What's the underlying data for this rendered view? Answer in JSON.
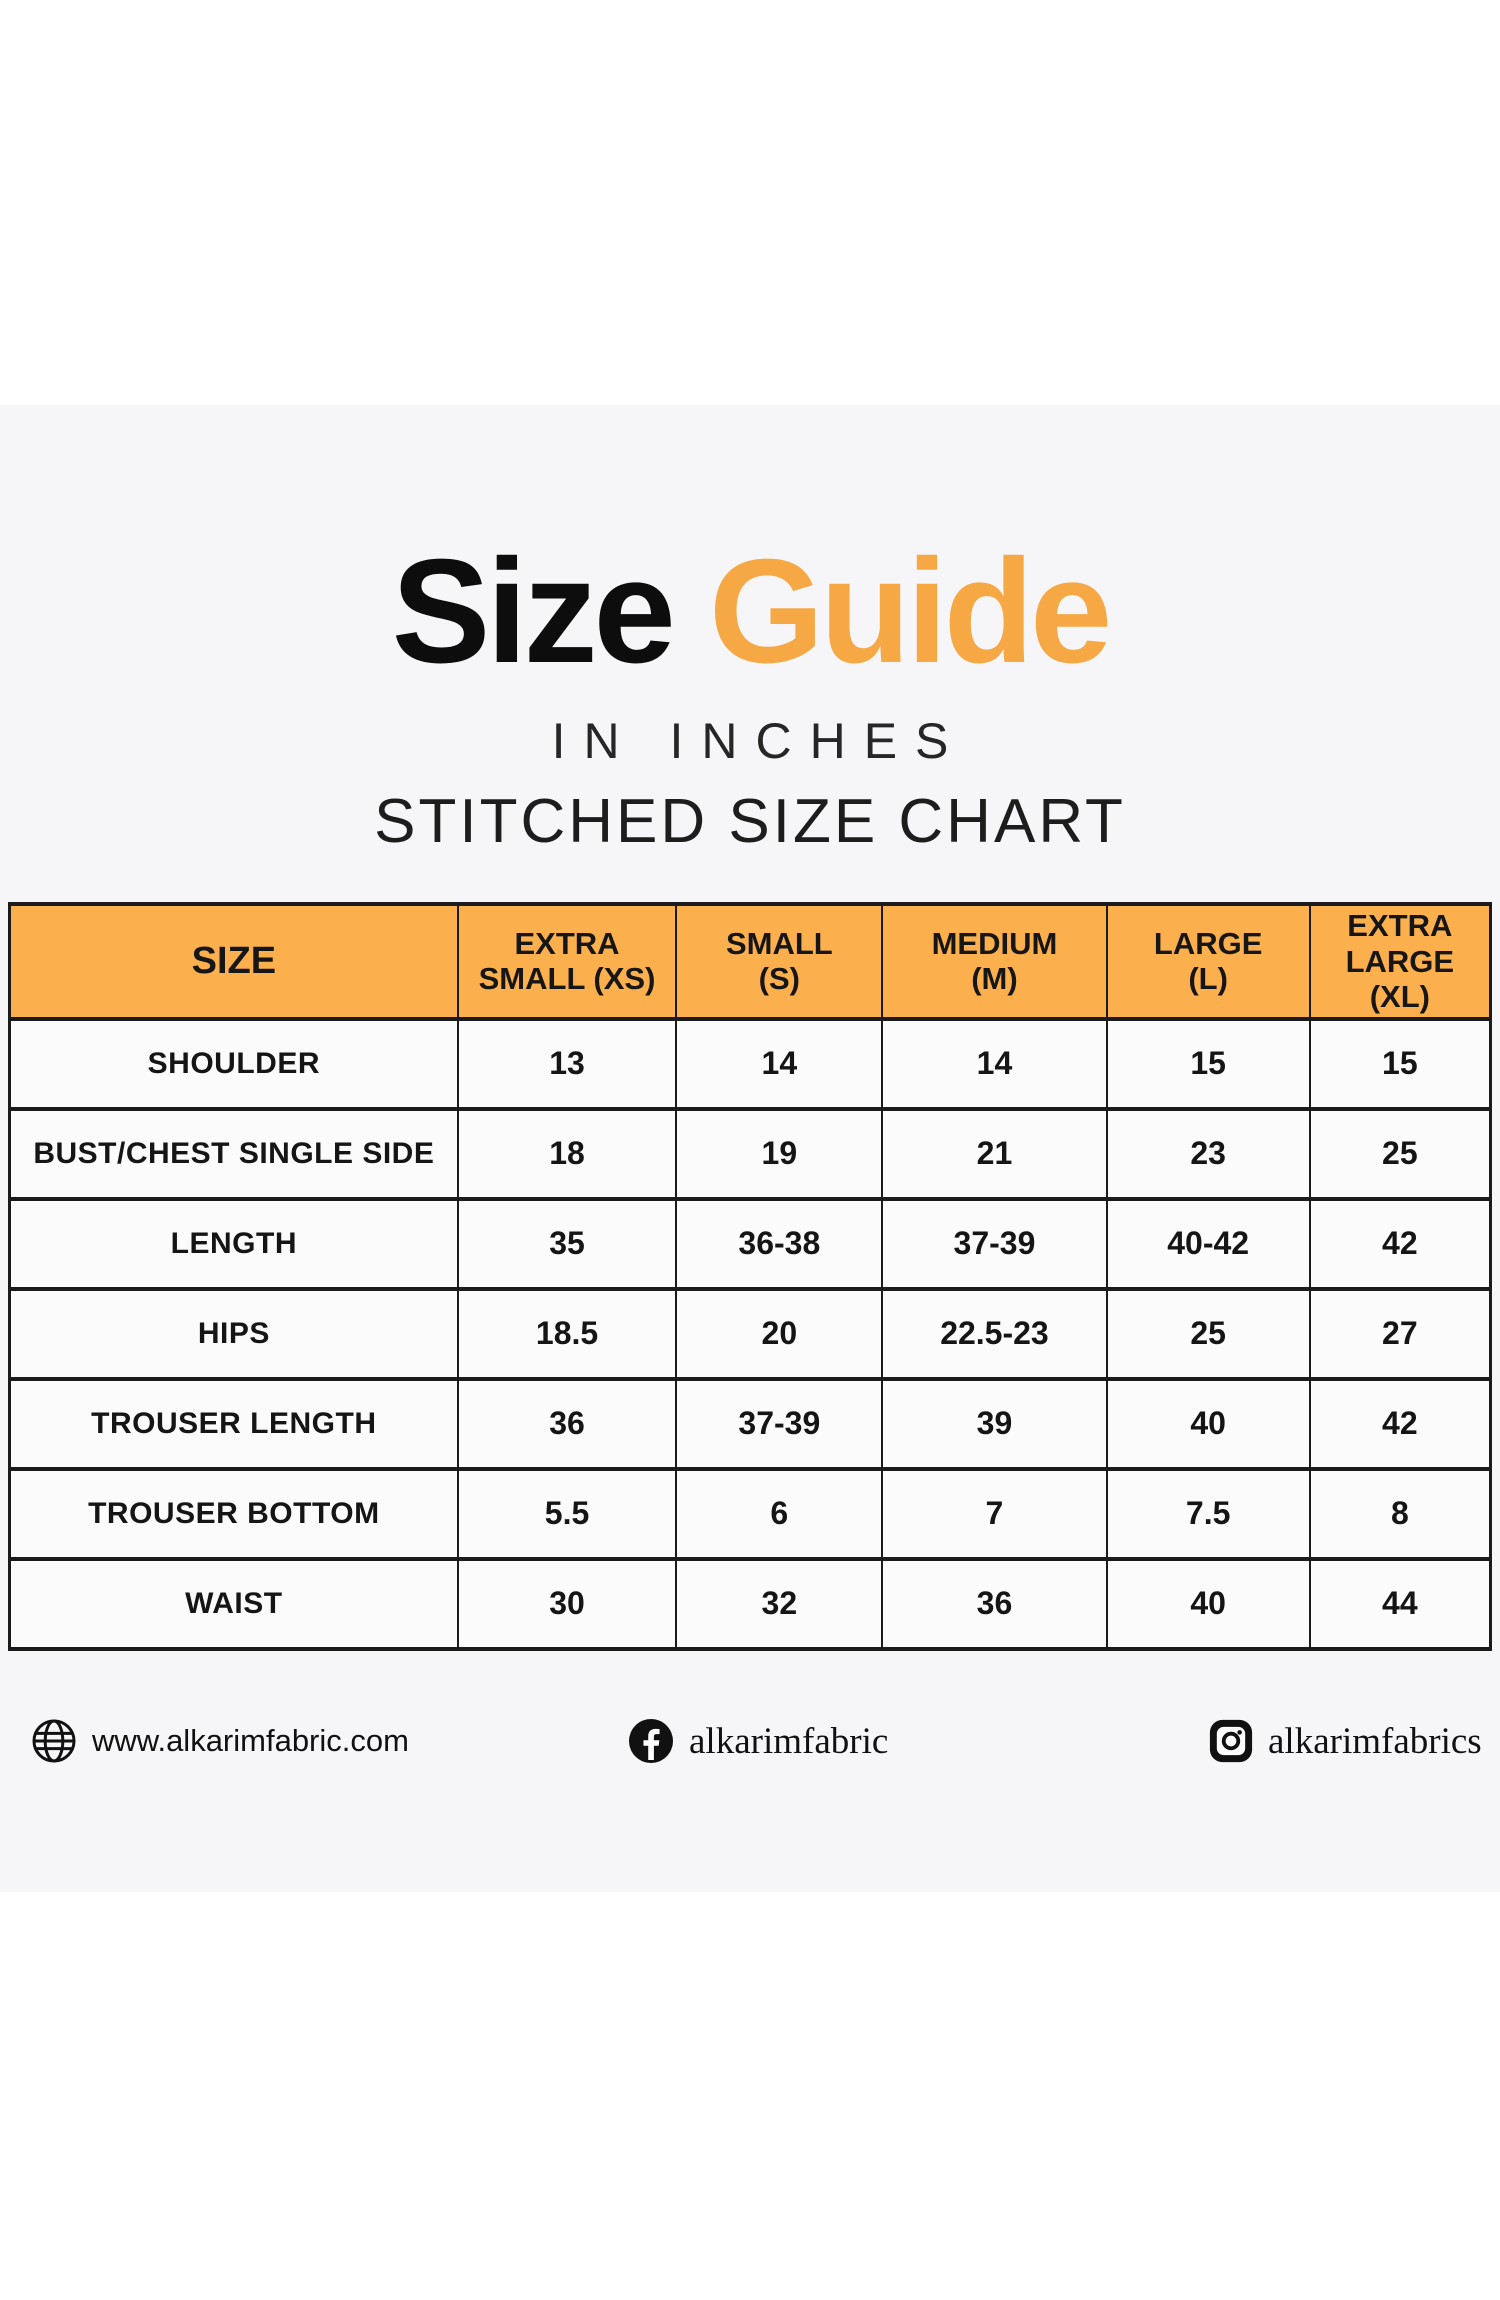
{
  "header": {
    "title_primary": "Size",
    "title_accent": "Guide",
    "unit_line": "IN INCHES",
    "chart_line": "STITCHED SIZE CHART"
  },
  "chart_data": {
    "type": "table",
    "units": "inches",
    "columns": [
      "SIZE",
      "EXTRA\nSMALL (XS)",
      "SMALL\n(S)",
      "MEDIUM\n(M)",
      "LARGE\n(L)",
      "EXTRA LARGE\n(XL)"
    ],
    "rows": [
      {
        "label": "SHOULDER",
        "values": [
          "13",
          "14",
          "14",
          "15",
          "15"
        ]
      },
      {
        "label": "BUST/CHEST SINGLE SIDE",
        "values": [
          "18",
          "19",
          "21",
          "23",
          "25"
        ]
      },
      {
        "label": "LENGTH",
        "values": [
          "35",
          "36-38",
          "37-39",
          "40-42",
          "42"
        ]
      },
      {
        "label": "HIPS",
        "values": [
          "18.5",
          "20",
          "22.5-23",
          "25",
          "27"
        ]
      },
      {
        "label": "TROUSER LENGTH",
        "values": [
          "36",
          "37-39",
          "39",
          "40",
          "42"
        ]
      },
      {
        "label": "TROUSER BOTTOM",
        "values": [
          "5.5",
          "6",
          "7",
          "7.5",
          "8"
        ]
      },
      {
        "label": "WAIST",
        "values": [
          "30",
          "32",
          "36",
          "40",
          "44"
        ]
      }
    ]
  },
  "footer": {
    "website": {
      "icon": "globe-icon",
      "label": "www.alkarimfabric.com"
    },
    "facebook": {
      "icon": "facebook-icon",
      "label": "alkarimfabric"
    },
    "instagram": {
      "icon": "instagram-icon",
      "label": "alkarimfabrics"
    }
  },
  "colors": {
    "accent_orange": "#F5A843",
    "header_orange": "#FBAF4D",
    "band_gray": "#F6F6F8",
    "border_dark": "#1B1B1B"
  }
}
